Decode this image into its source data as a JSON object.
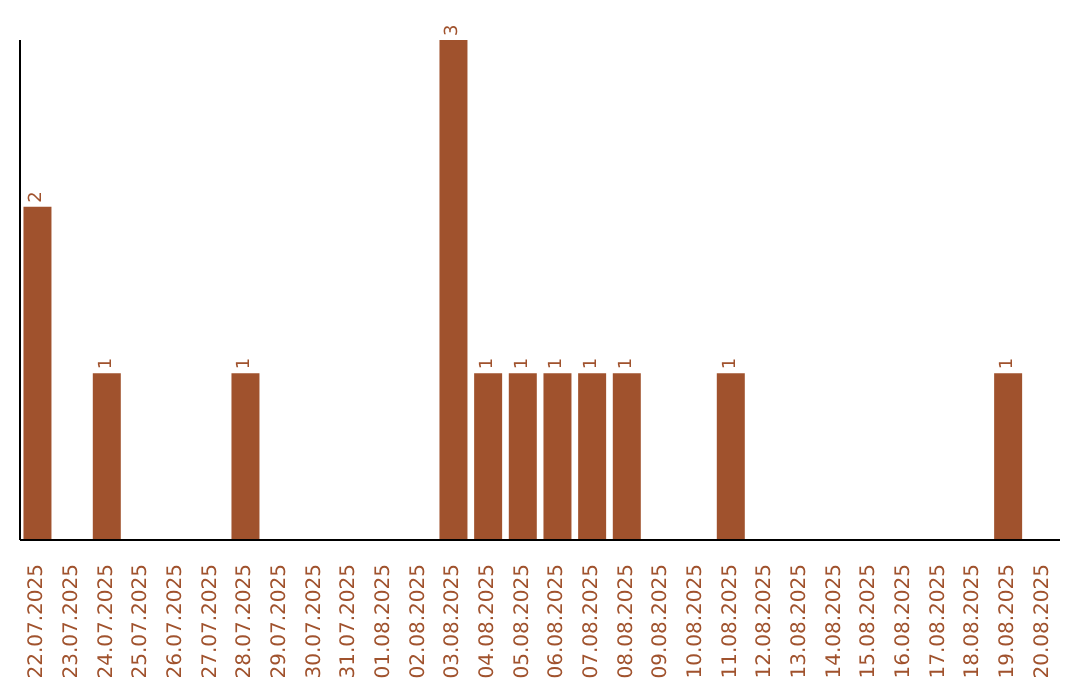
{
  "chart_data": {
    "type": "bar",
    "categories": [
      "22.07.2025",
      "23.07.2025",
      "24.07.2025",
      "25.07.2025",
      "26.07.2025",
      "27.07.2025",
      "28.07.2025",
      "29.07.2025",
      "30.07.2025",
      "31.07.2025",
      "01.08.2025",
      "02.08.2025",
      "03.08.2025",
      "04.08.2025",
      "05.08.2025",
      "06.08.2025",
      "07.08.2025",
      "08.08.2025",
      "09.08.2025",
      "10.08.2025",
      "11.08.2025",
      "12.08.2025",
      "13.08.2025",
      "14.08.2025",
      "15.08.2025",
      "16.08.2025",
      "17.08.2025",
      "18.08.2025",
      "19.08.2025",
      "20.08.2025"
    ],
    "values": [
      2,
      0,
      1,
      0,
      0,
      0,
      1,
      0,
      0,
      0,
      0,
      0,
      3,
      1,
      1,
      1,
      1,
      1,
      0,
      0,
      1,
      0,
      0,
      0,
      0,
      0,
      0,
      0,
      1,
      0
    ],
    "value_labels": [
      "2",
      null,
      "1",
      null,
      null,
      null,
      "1",
      null,
      null,
      null,
      null,
      null,
      "3",
      "1",
      "1",
      "1",
      "1",
      "1",
      null,
      null,
      "1",
      null,
      null,
      null,
      null,
      null,
      null,
      null,
      "1",
      null
    ],
    "color": "#a0522d",
    "grid": false,
    "legend": false
  }
}
